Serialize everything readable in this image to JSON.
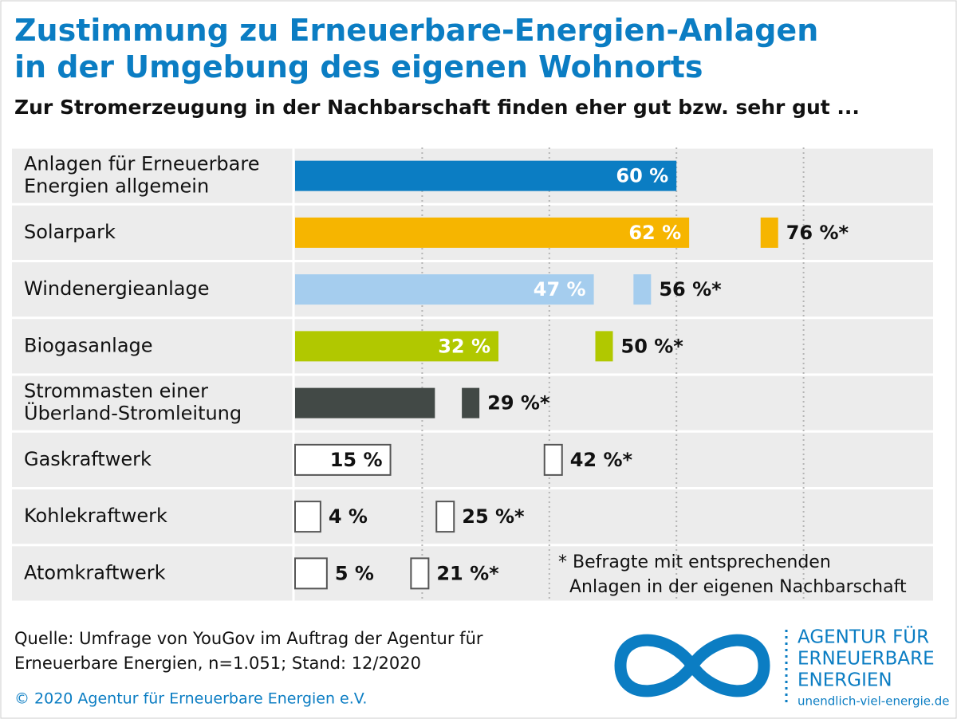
{
  "chart_data": {
    "type": "bar",
    "orientation": "horizontal",
    "title": "Zustimmung zu Erneuerbare-Energien-Anlagen\nin der Umgebung des eigenen Wohnorts",
    "subtitle": "Zur Stromerzeugung in der Nachbarschaft finden eher gut bzw. sehr gut ...",
    "categories": [
      "Anlagen für Erneuerbare\nEnergien allgemein",
      "Solarpark",
      "Windenergieanlage",
      "Biogasanlage",
      "Strommasten einer\nÜberland-Stromleitung",
      "Gaskraftwerk",
      "Kohlekraftwerk",
      "Atomkraftwerk"
    ],
    "values": [
      60,
      62,
      47,
      32,
      22,
      15,
      4,
      5
    ],
    "value_labels": [
      "60 %",
      "62 %",
      "47 %",
      "32 %",
      null,
      "15 %",
      "4 %",
      "5 %"
    ],
    "colors": [
      "#0b7dc3",
      "#f6b500",
      "#a5cdee",
      "#b1c800",
      "#424946",
      "#ffffff",
      "#ffffff",
      "#ffffff"
    ],
    "neighborhood_values": [
      null,
      76,
      56,
      50,
      29,
      42,
      25,
      21
    ],
    "neighborhood_value_labels": [
      null,
      "76 %*",
      "56 %*",
      "50 %*",
      "29 %*",
      "42 %*",
      "25 %*",
      "21 %*"
    ],
    "footnote": "* Befragte mit entsprechenden\n  Anlagen in der eigenen Nachbarschaft",
    "xlim": [
      0,
      100
    ],
    "xticks": [
      20,
      40,
      60,
      80
    ],
    "grid": true,
    "source": "Quelle: Umfrage von YouGov im Auftrag der Agentur für\nErneuerbare Energien, n=1.051; Stand: 12/2020",
    "copyright": "© 2020 Agentur für Erneuerbare Energien e.V.",
    "logo": {
      "lines": [
        "AGENTUR FÜR",
        "ERNEUERBARE",
        "ENERGIEN"
      ],
      "url": "unendlich-viel-energie.de"
    }
  }
}
